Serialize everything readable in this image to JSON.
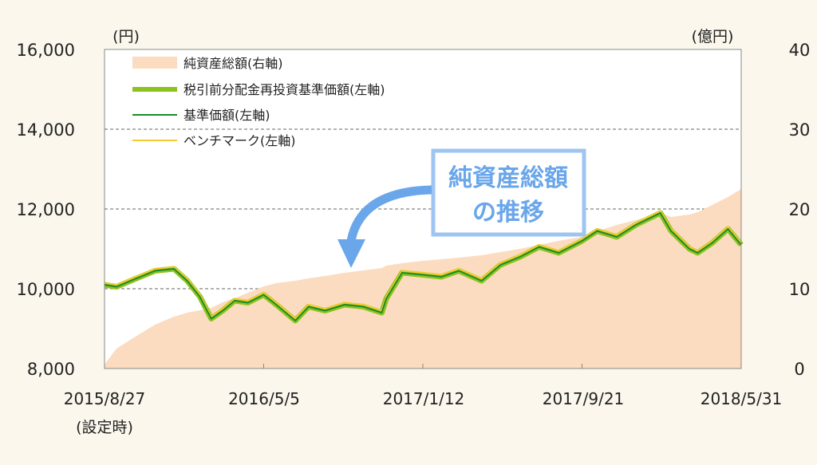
{
  "colors": {
    "background": "#fbf7ec",
    "plot_area": "#ffffff",
    "net_assets_fill": "#fbdcc0",
    "pretax_nav_line": "#8cc31f",
    "nav_line": "#1d8a2b",
    "benchmark_line": "#f5cb2a",
    "callout_border": "#9ec5f2",
    "callout_text": "#6aa6ea",
    "arrow": "#6aa6ea"
  },
  "callout": {
    "line1": "純資産総額",
    "line2": "の推移"
  },
  "chart_data": {
    "type": "line",
    "title": "",
    "left_axis": {
      "unit_label": "(円)",
      "range": [
        8000,
        16000
      ],
      "ticks": [
        "8,000",
        "10,000",
        "12,000",
        "14,000",
        "16,000"
      ]
    },
    "right_axis": {
      "unit_label": "(億円)",
      "range": [
        0,
        40
      ],
      "ticks": [
        "0",
        "10",
        "20",
        "30",
        "40"
      ]
    },
    "x_axis": {
      "range": [
        "2015-08-27",
        "2018-05-31"
      ],
      "tick_labels": [
        "2015/8/27",
        "2016/5/5",
        "2017/1/12",
        "2017/9/21",
        "2018/5/31"
      ],
      "first_tick_sublabel": "(設定時)"
    },
    "grid": "horizontal dashed",
    "legend": {
      "placement": "top-left",
      "entries": [
        "純資産総額(右軸)",
        "税引前分配金再投資基準価額(左軸)",
        "基準価額(左軸)",
        "ベンチマーク(左軸)"
      ]
    },
    "dates": [
      "2015-08-27",
      "2015-09-15",
      "2015-10-15",
      "2015-11-15",
      "2015-12-15",
      "2016-01-05",
      "2016-01-25",
      "2016-02-12",
      "2016-03-01",
      "2016-03-20",
      "2016-04-10",
      "2016-05-05",
      "2016-05-25",
      "2016-06-24",
      "2016-07-15",
      "2016-08-10",
      "2016-09-10",
      "2016-10-10",
      "2016-11-08",
      "2016-11-15",
      "2016-12-10",
      "2017-01-12",
      "2017-02-10",
      "2017-03-10",
      "2017-04-15",
      "2017-05-15",
      "2017-06-15",
      "2017-07-15",
      "2017-08-15",
      "2017-09-21",
      "2017-10-15",
      "2017-11-15",
      "2017-12-15",
      "2018-01-23",
      "2018-02-09",
      "2018-03-10",
      "2018-03-23",
      "2018-04-15",
      "2018-05-10",
      "2018-05-31"
    ],
    "series": [
      {
        "name": "純資産総額(右軸)",
        "axis": "right",
        "style": "area",
        "values": [
          0.5,
          2.5,
          4.0,
          5.5,
          6.5,
          7.0,
          7.3,
          7.6,
          8.3,
          8.8,
          9.5,
          10.3,
          10.7,
          11.0,
          11.3,
          11.6,
          12.0,
          12.3,
          12.6,
          12.9,
          13.2,
          13.5,
          13.7,
          13.9,
          14.2,
          14.6,
          15.0,
          15.5,
          16.0,
          16.5,
          17.2,
          18.0,
          18.6,
          19.5,
          19.0,
          19.3,
          19.6,
          20.5,
          21.5,
          22.5
        ]
      },
      {
        "name": "税引前分配金再投資基準価額(左軸)",
        "axis": "left",
        "style": "line",
        "values": [
          10100,
          10050,
          10250,
          10450,
          10500,
          10200,
          9800,
          9250,
          9450,
          9700,
          9650,
          9850,
          9600,
          9200,
          9550,
          9450,
          9600,
          9550,
          9400,
          9750,
          10400,
          10350,
          10300,
          10450,
          10200,
          10600,
          10800,
          11050,
          10900,
          11200,
          11450,
          11300,
          11600,
          11900,
          11450,
          11000,
          10900,
          11150,
          11500,
          11100
        ]
      },
      {
        "name": "基準価額(左軸)",
        "axis": "left",
        "style": "line",
        "values": [
          10100,
          10050,
          10250,
          10450,
          10500,
          10200,
          9800,
          9250,
          9450,
          9700,
          9650,
          9850,
          9600,
          9200,
          9550,
          9450,
          9600,
          9550,
          9400,
          9750,
          10400,
          10350,
          10300,
          10450,
          10200,
          10600,
          10800,
          11050,
          10900,
          11200,
          11450,
          11300,
          11600,
          11900,
          11450,
          11000,
          10900,
          11150,
          11500,
          11100
        ]
      },
      {
        "name": "ベンチマーク(左軸)",
        "axis": "left",
        "style": "line",
        "values": [
          10150,
          10100,
          10300,
          10500,
          10550,
          10250,
          9850,
          9300,
          9500,
          9750,
          9700,
          9900,
          9650,
          9250,
          9600,
          9500,
          9650,
          9600,
          9450,
          9800,
          10450,
          10400,
          10350,
          10500,
          10250,
          10650,
          10850,
          11100,
          10950,
          11250,
          11500,
          11350,
          11650,
          11950,
          11500,
          11050,
          10950,
          11200,
          11550,
          11150
        ]
      }
    ]
  }
}
